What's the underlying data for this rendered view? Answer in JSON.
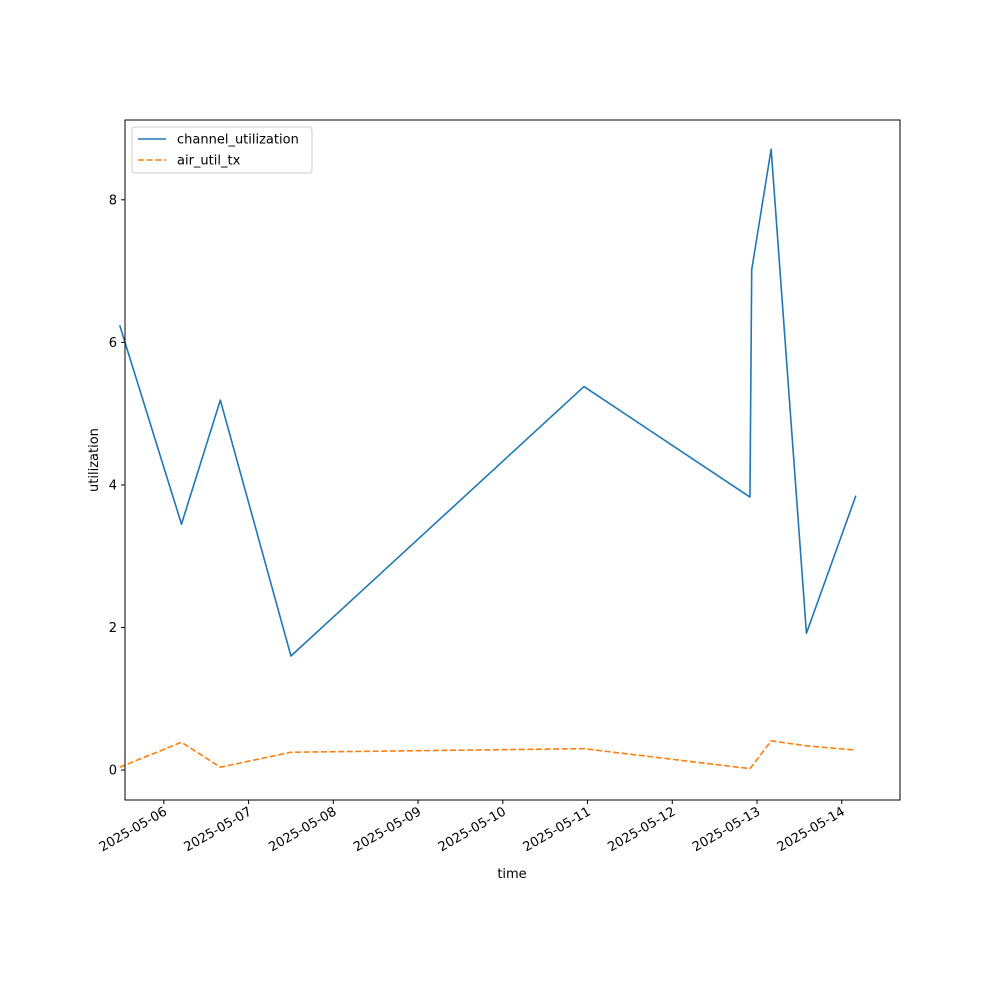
{
  "chart_data": {
    "type": "line",
    "xlabel": "time",
    "ylabel": "utilization",
    "xlim": [
      "2025-05-05T13:00",
      "2025-05-14T16:30"
    ],
    "ylim": [
      -0.42,
      9.12
    ],
    "x_ticks": [
      "2025-05-06",
      "2025-05-07",
      "2025-05-08",
      "2025-05-09",
      "2025-05-10",
      "2025-05-11",
      "2025-05-12",
      "2025-05-13",
      "2025-05-14"
    ],
    "y_ticks": [
      0,
      2,
      4,
      6,
      8
    ],
    "grid": false,
    "legend_position": "top-left",
    "series": [
      {
        "name": "channel_utilization",
        "color": "#1f77b4",
        "line_style": "solid",
        "points": [
          {
            "x": "2025-05-05T11:30",
            "y": 6.24
          },
          {
            "x": "2025-05-06T05:00",
            "y": 3.45
          },
          {
            "x": "2025-05-06T16:00",
            "y": 5.19
          },
          {
            "x": "2025-05-07T12:00",
            "y": 1.6
          },
          {
            "x": "2025-05-10T23:00",
            "y": 5.38
          },
          {
            "x": "2025-05-12T22:00",
            "y": 3.83
          },
          {
            "x": "2025-05-12T22:30",
            "y": 7.02
          },
          {
            "x": "2025-05-13T04:00",
            "y": 8.71
          },
          {
            "x": "2025-05-13T14:00",
            "y": 1.92
          },
          {
            "x": "2025-05-14T04:00",
            "y": 3.85
          }
        ]
      },
      {
        "name": "air_util_tx",
        "color": "#ff7f0e",
        "line_style": "dashed",
        "points": [
          {
            "x": "2025-05-05T11:30",
            "y": 0.04
          },
          {
            "x": "2025-05-06T05:00",
            "y": 0.39
          },
          {
            "x": "2025-05-06T16:00",
            "y": 0.04
          },
          {
            "x": "2025-05-07T12:00",
            "y": 0.25
          },
          {
            "x": "2025-05-10T23:00",
            "y": 0.3
          },
          {
            "x": "2025-05-12T22:00",
            "y": 0.02
          },
          {
            "x": "2025-05-12T22:30",
            "y": 0.05
          },
          {
            "x": "2025-05-13T04:00",
            "y": 0.41
          },
          {
            "x": "2025-05-13T14:00",
            "y": 0.34
          },
          {
            "x": "2025-05-14T04:00",
            "y": 0.28
          }
        ]
      }
    ]
  }
}
